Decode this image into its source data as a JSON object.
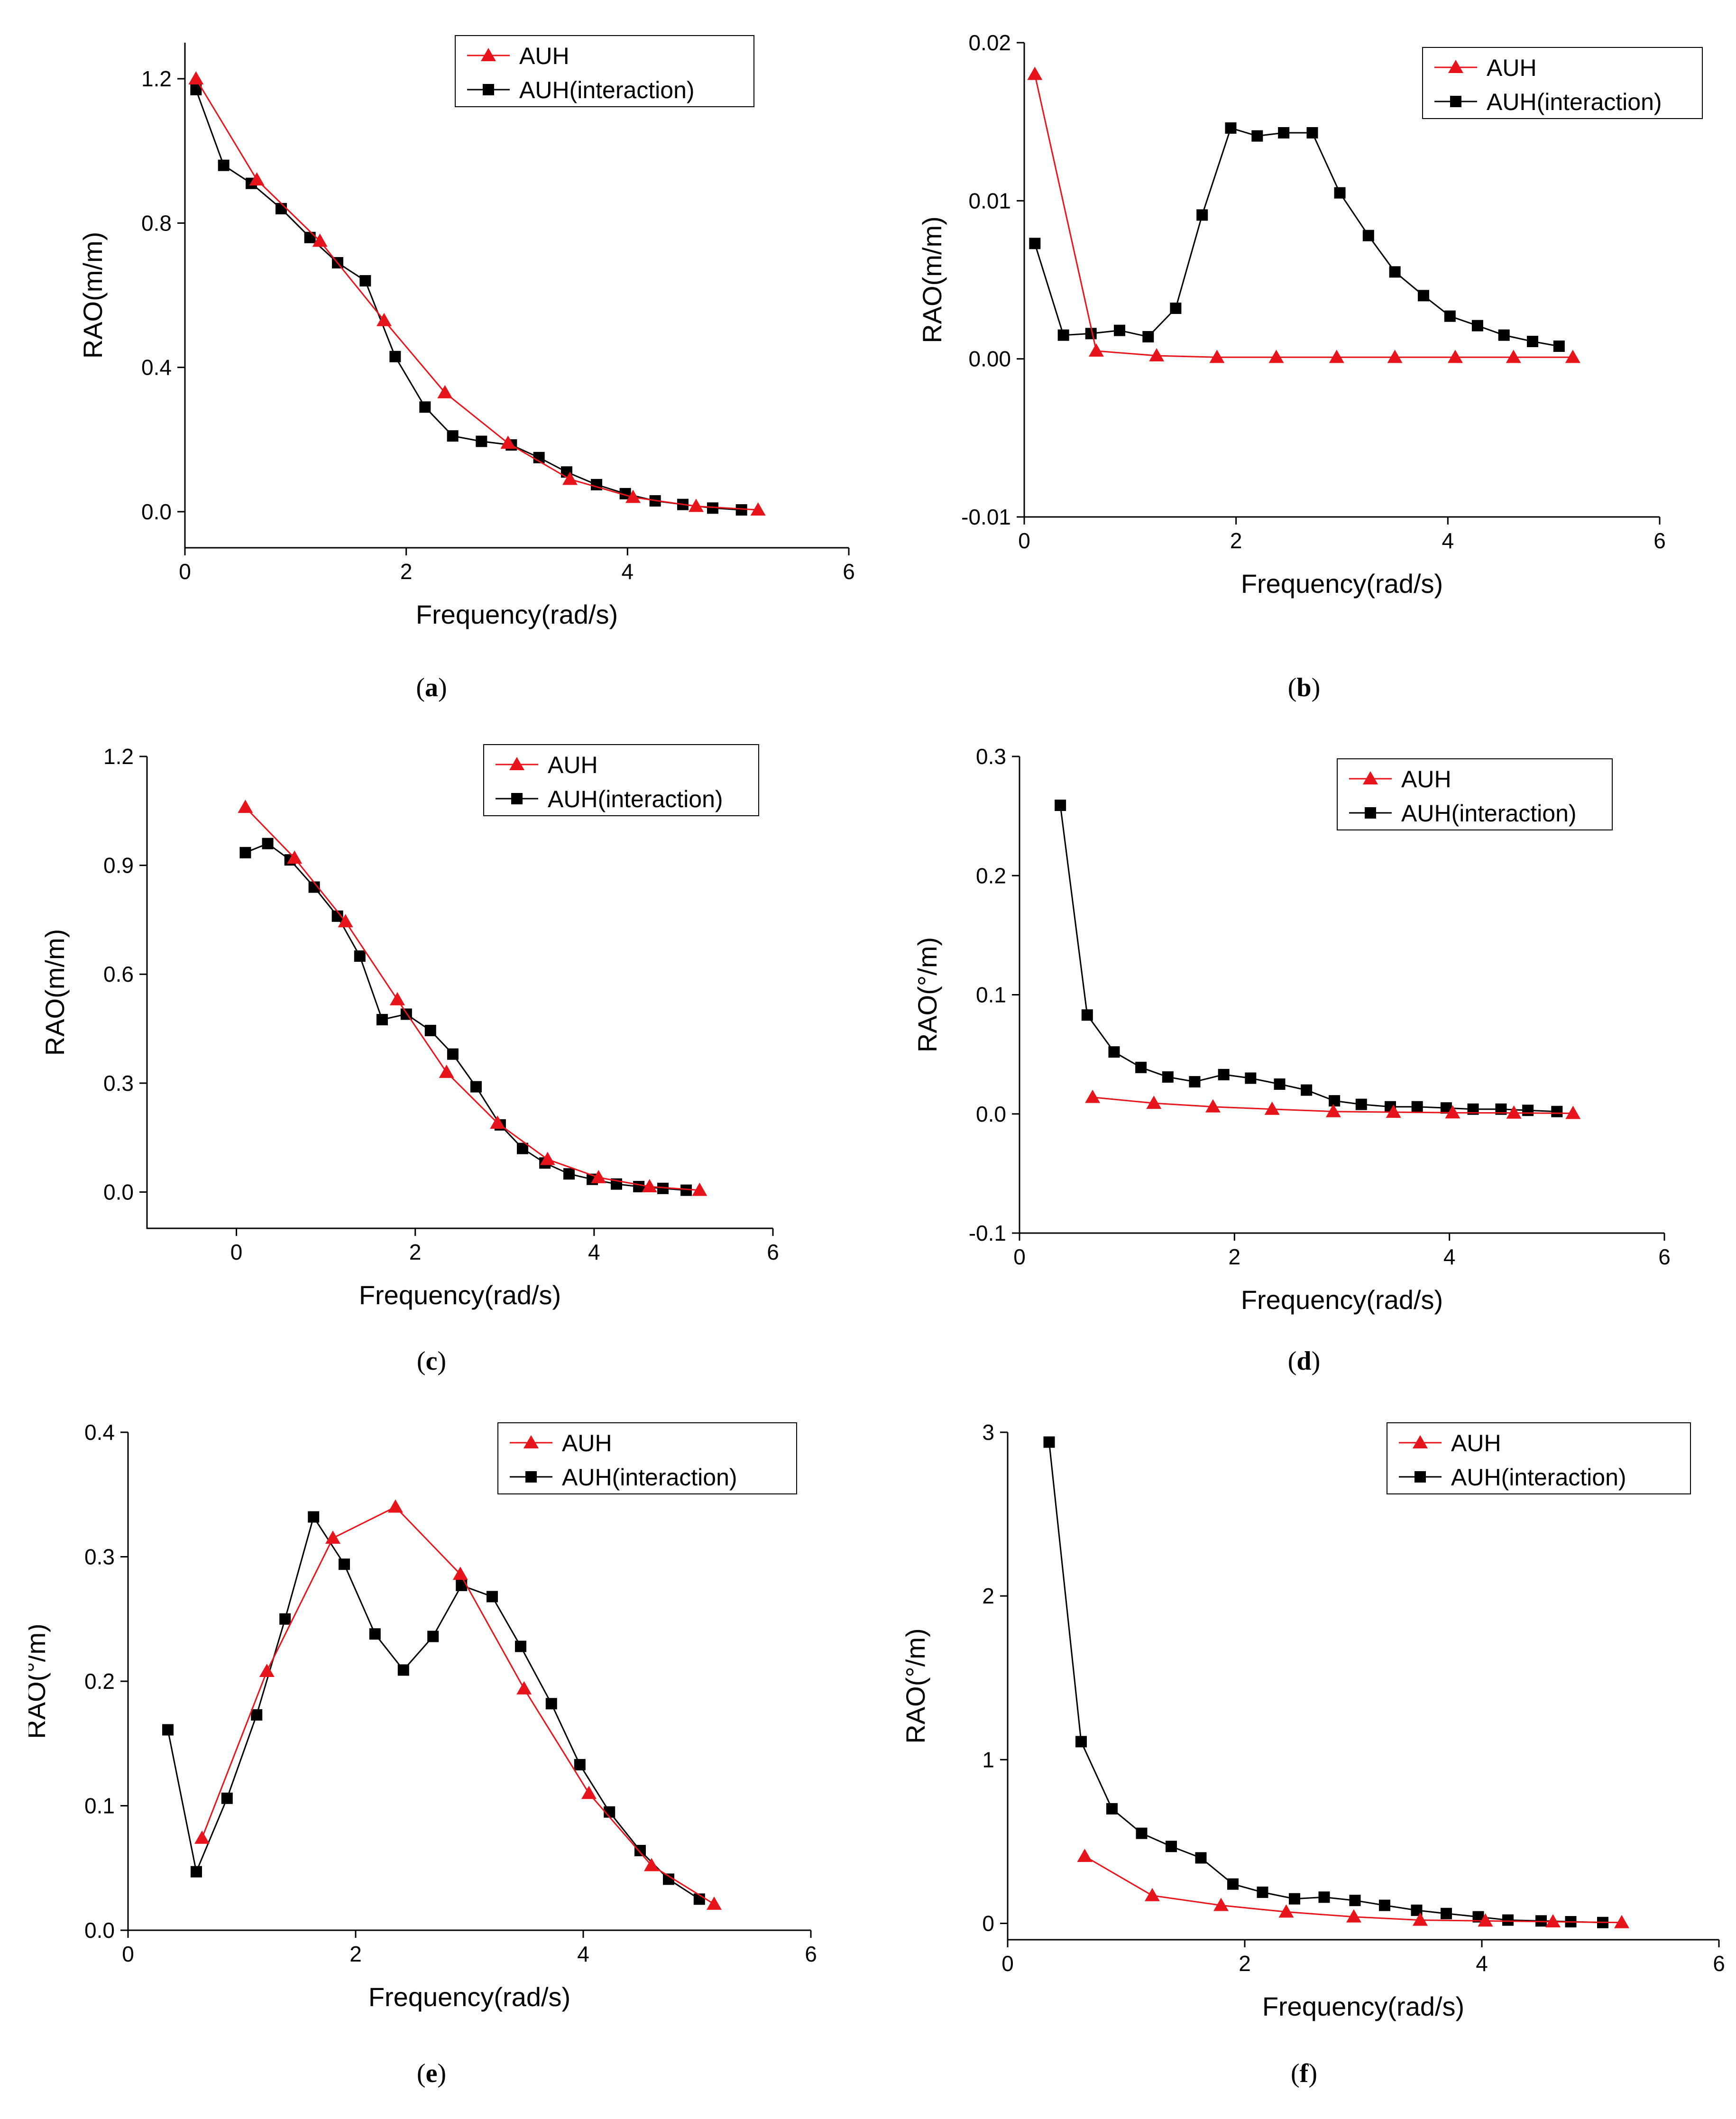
{
  "figure": {
    "captions": [
      {
        "open": "(",
        "letter": "a",
        "close": ")"
      },
      {
        "open": "(",
        "letter": "b",
        "close": ")"
      },
      {
        "open": "(",
        "letter": "c",
        "close": ")"
      },
      {
        "open": "(",
        "letter": "d",
        "close": ")"
      },
      {
        "open": "(",
        "letter": "e",
        "close": ")"
      },
      {
        "open": "(",
        "letter": "f",
        "close": ")"
      }
    ]
  },
  "colors": {
    "auh": "#e8141c",
    "interaction": "#000000"
  },
  "chart_data": [
    {
      "type": "line",
      "panel": "a",
      "xlabel": "Frequency(rad/s)",
      "ylabel": "RAO(m/m)",
      "xlim": [
        0,
        6
      ],
      "ylim": [
        -0.1,
        1.3
      ],
      "xticks": [
        0,
        2,
        4,
        6
      ],
      "xtick_labels": [
        "0",
        "2",
        "4",
        "6"
      ],
      "yticks": [
        0.0,
        0.4,
        0.8,
        1.2
      ],
      "ytick_labels": [
        "0.0",
        "0.4",
        "0.8",
        "1.2"
      ],
      "legend": [
        "AUH",
        "AUH(interaction)"
      ],
      "series": [
        {
          "name": "AUH",
          "marker": "triangle",
          "x": [
            0.1,
            0.65,
            1.22,
            1.8,
            2.35,
            2.92,
            3.48,
            4.05,
            4.62,
            5.18
          ],
          "y": [
            1.2,
            0.92,
            0.75,
            0.53,
            0.33,
            0.19,
            0.09,
            0.04,
            0.015,
            0.005
          ]
        },
        {
          "name": "AUH(interaction)",
          "marker": "square",
          "x": [
            0.1,
            0.35,
            0.6,
            0.87,
            1.13,
            1.38,
            1.63,
            1.9,
            2.17,
            2.42,
            2.68,
            2.95,
            3.2,
            3.45,
            3.72,
            3.98,
            4.25,
            4.5,
            4.77,
            5.03
          ],
          "y": [
            1.17,
            0.96,
            0.91,
            0.84,
            0.76,
            0.69,
            0.64,
            0.43,
            0.29,
            0.21,
            0.195,
            0.185,
            0.15,
            0.11,
            0.075,
            0.05,
            0.03,
            0.02,
            0.01,
            0.005
          ]
        }
      ]
    },
    {
      "type": "line",
      "panel": "b",
      "xlabel": "Frequency(rad/s)",
      "ylabel": "RAO(m/m)",
      "xlim": [
        0,
        6
      ],
      "ylim": [
        -0.01,
        0.02
      ],
      "xticks": [
        0,
        2,
        4,
        6
      ],
      "xtick_labels": [
        "0",
        "2",
        "4",
        "6"
      ],
      "yticks": [
        -0.01,
        0.0,
        0.01,
        0.02
      ],
      "ytick_labels": [
        "-0.01",
        "0.00",
        "0.01",
        "0.02"
      ],
      "legend": [
        "AUH",
        "AUH(interaction)"
      ],
      "series": [
        {
          "name": "AUH",
          "marker": "triangle",
          "x": [
            0.1,
            0.68,
            1.25,
            1.82,
            2.38,
            2.95,
            3.5,
            4.07,
            4.62,
            5.18
          ],
          "y": [
            0.018,
            0.0005,
            0.0002,
            0.0001,
            0.0001,
            0.0001,
            0.0001,
            0.0001,
            0.0001,
            0.0001
          ]
        },
        {
          "name": "AUH(interaction)",
          "marker": "square",
          "x": [
            0.1,
            0.37,
            0.63,
            0.9,
            1.17,
            1.43,
            1.68,
            1.95,
            2.2,
            2.45,
            2.72,
            2.98,
            3.25,
            3.5,
            3.77,
            4.02,
            4.28,
            4.53,
            4.8,
            5.05
          ],
          "y": [
            0.0073,
            0.0015,
            0.0016,
            0.0018,
            0.0014,
            0.0032,
            0.0091,
            0.0146,
            0.0141,
            0.0143,
            0.0143,
            0.0105,
            0.0078,
            0.0055,
            0.004,
            0.0027,
            0.0021,
            0.0015,
            0.0011,
            0.0008
          ]
        }
      ]
    },
    {
      "type": "line",
      "panel": "c",
      "xlabel": "Frequency(rad/s)",
      "ylabel": "RAO(m/m)",
      "xlim": [
        -1,
        6
      ],
      "ylim": [
        -0.1,
        1.2
      ],
      "xticks": [
        0,
        2,
        4,
        6
      ],
      "xtick_labels": [
        "0",
        "2",
        "4",
        "6"
      ],
      "yticks": [
        0.0,
        0.3,
        0.6,
        0.9,
        1.2
      ],
      "ytick_labels": [
        "0.0",
        "0.3",
        "0.6",
        "0.9",
        "1.2"
      ],
      "legend": [
        "AUH",
        "AUH(interaction)"
      ],
      "series": [
        {
          "name": "AUH",
          "marker": "triangle",
          "x": [
            0.1,
            0.65,
            1.22,
            1.8,
            2.35,
            2.92,
            3.48,
            4.05,
            4.62,
            5.18
          ],
          "y": [
            1.06,
            0.92,
            0.745,
            0.53,
            0.33,
            0.19,
            0.09,
            0.04,
            0.015,
            0.005
          ]
        },
        {
          "name": "AUH(interaction)",
          "marker": "square",
          "x": [
            0.1,
            0.35,
            0.6,
            0.87,
            1.13,
            1.38,
            1.63,
            1.9,
            2.17,
            2.42,
            2.68,
            2.95,
            3.2,
            3.45,
            3.72,
            3.98,
            4.25,
            4.5,
            4.77,
            5.03
          ],
          "y": [
            0.935,
            0.96,
            0.915,
            0.84,
            0.76,
            0.65,
            0.475,
            0.49,
            0.445,
            0.38,
            0.29,
            0.185,
            0.12,
            0.08,
            0.05,
            0.035,
            0.022,
            0.015,
            0.01,
            0.005
          ]
        }
      ]
    },
    {
      "type": "line",
      "panel": "d",
      "xlabel": "Frequency(rad/s)",
      "ylabel": "RAO(°/m)",
      "xlim": [
        0,
        6
      ],
      "ylim": [
        -0.1,
        0.3
      ],
      "xticks": [
        0,
        2,
        4,
        6
      ],
      "xtick_labels": [
        "0",
        "2",
        "4",
        "6"
      ],
      "yticks": [
        -0.1,
        0.0,
        0.1,
        0.2,
        0.3
      ],
      "ytick_labels": [
        "-0.1",
        "0.0",
        "0.1",
        "0.2",
        "0.3"
      ],
      "legend": [
        "AUH",
        "AUH(interaction)"
      ],
      "series": [
        {
          "name": "AUH",
          "marker": "triangle",
          "x": [
            0.68,
            1.25,
            1.8,
            2.35,
            2.92,
            3.48,
            4.03,
            4.6,
            5.15
          ],
          "y": [
            0.014,
            0.009,
            0.006,
            0.004,
            0.002,
            0.0015,
            0.001,
            0.0008,
            0.0005
          ]
        },
        {
          "name": "AUH(interaction)",
          "marker": "square",
          "x": [
            0.38,
            0.63,
            0.88,
            1.13,
            1.38,
            1.63,
            1.9,
            2.15,
            2.42,
            2.67,
            2.93,
            3.18,
            3.45,
            3.7,
            3.97,
            4.22,
            4.48,
            4.73,
            5.0
          ],
          "y": [
            0.259,
            0.083,
            0.052,
            0.039,
            0.031,
            0.027,
            0.033,
            0.03,
            0.025,
            0.02,
            0.011,
            0.008,
            0.006,
            0.006,
            0.005,
            0.004,
            0.004,
            0.003,
            0.002
          ]
        }
      ]
    },
    {
      "type": "line",
      "panel": "e",
      "xlabel": "Frequency(rad/s)",
      "ylabel": "RAO(°/m)",
      "xlim": [
        0,
        6
      ],
      "ylim": [
        0.0,
        0.4
      ],
      "xticks": [
        0,
        2,
        4,
        6
      ],
      "xtick_labels": [
        "0",
        "2",
        "4",
        "6"
      ],
      "yticks": [
        0.0,
        0.1,
        0.2,
        0.3,
        0.4
      ],
      "ytick_labels": [
        "0.0",
        "0.1",
        "0.2",
        "0.3",
        "0.4"
      ],
      "legend": [
        "AUH",
        "AUH(interaction)"
      ],
      "series": [
        {
          "name": "AUH",
          "marker": "triangle",
          "x": [
            0.65,
            1.22,
            1.8,
            2.35,
            2.92,
            3.48,
            4.05,
            4.6,
            5.15
          ],
          "y": [
            0.074,
            0.208,
            0.315,
            0.34,
            0.286,
            0.194,
            0.11,
            0.052,
            0.021
          ]
        },
        {
          "name": "AUH(interaction)",
          "marker": "square",
          "x": [
            0.35,
            0.6,
            0.87,
            1.13,
            1.38,
            1.63,
            1.9,
            2.17,
            2.42,
            2.68,
            2.93,
            3.2,
            3.45,
            3.72,
            3.97,
            4.23,
            4.5,
            4.75,
            5.02
          ],
          "y": [
            0.161,
            0.047,
            0.106,
            0.173,
            0.25,
            0.332,
            0.294,
            0.238,
            0.209,
            0.236,
            0.277,
            0.268,
            0.228,
            0.182,
            0.133,
            0.095,
            0.064,
            0.041,
            0.025
          ]
        }
      ]
    },
    {
      "type": "line",
      "panel": "f",
      "xlabel": "Frequency(rad/s)",
      "ylabel": "RAO(°/m)",
      "xlim": [
        0,
        6
      ],
      "ylim": [
        -0.1,
        3.0
      ],
      "xticks": [
        0,
        2,
        4,
        6
      ],
      "xtick_labels": [
        "0",
        "2",
        "4",
        "6"
      ],
      "yticks": [
        0,
        1,
        2,
        3
      ],
      "ytick_labels": [
        "0",
        "1",
        "2",
        "3"
      ],
      "legend": [
        "AUH",
        "AUH(interaction)"
      ],
      "series": [
        {
          "name": "AUH",
          "marker": "triangle",
          "x": [
            0.65,
            1.22,
            1.8,
            2.35,
            2.92,
            3.48,
            4.03,
            4.6,
            5.18
          ],
          "y": [
            0.41,
            0.17,
            0.11,
            0.07,
            0.04,
            0.02,
            0.015,
            0.01,
            0.005
          ]
        },
        {
          "name": "AUH(interaction)",
          "marker": "square",
          "x": [
            0.35,
            0.62,
            0.88,
            1.13,
            1.38,
            1.63,
            1.9,
            2.15,
            2.42,
            2.67,
            2.93,
            3.18,
            3.45,
            3.7,
            3.97,
            4.22,
            4.5,
            4.75,
            5.02
          ],
          "y": [
            2.94,
            1.11,
            0.7,
            0.55,
            0.47,
            0.4,
            0.24,
            0.19,
            0.15,
            0.16,
            0.14,
            0.11,
            0.08,
            0.06,
            0.04,
            0.02,
            0.015,
            0.01,
            0.005
          ]
        }
      ]
    }
  ]
}
